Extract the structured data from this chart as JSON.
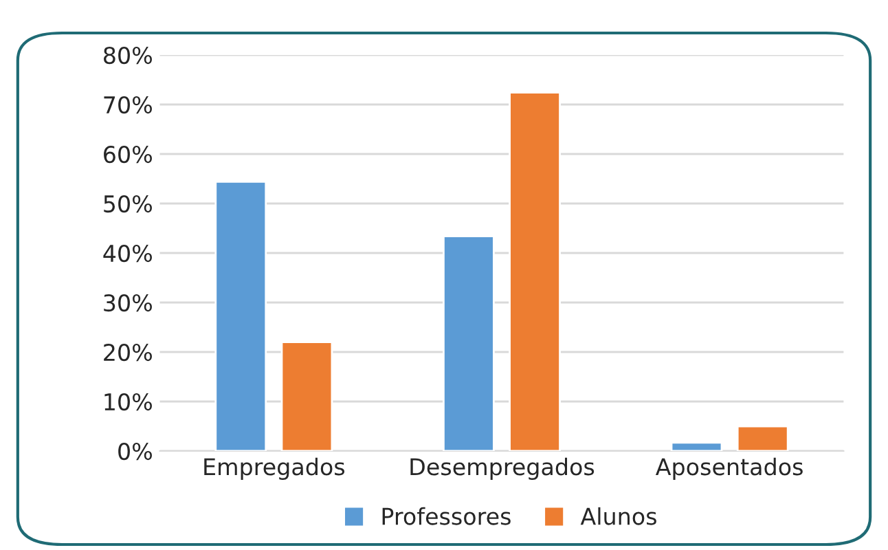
{
  "chart_data": {
    "type": "bar",
    "categories": [
      "Empregados",
      "Desempregados",
      "Aposentados"
    ],
    "series": [
      {
        "name": "Professores",
        "color": "#5b9bd5",
        "values": [
          54.4,
          43.4,
          1.7
        ]
      },
      {
        "name": "Alunos",
        "color": "#ed7d31",
        "values": [
          22.0,
          72.4,
          5.0
        ]
      }
    ],
    "ylim": [
      0,
      80
    ],
    "yticks": [
      {
        "value": 0,
        "label": "0%"
      },
      {
        "value": 10,
        "label": "10%"
      },
      {
        "value": 20,
        "label": "20%"
      },
      {
        "value": 30,
        "label": "30%"
      },
      {
        "value": 40,
        "label": "40%"
      },
      {
        "value": 50,
        "label": "50%"
      },
      {
        "value": 60,
        "label": "60%"
      },
      {
        "value": 70,
        "label": "70%"
      },
      {
        "value": 80,
        "label": "80%"
      }
    ],
    "grid": "y",
    "legend": "bottom"
  }
}
